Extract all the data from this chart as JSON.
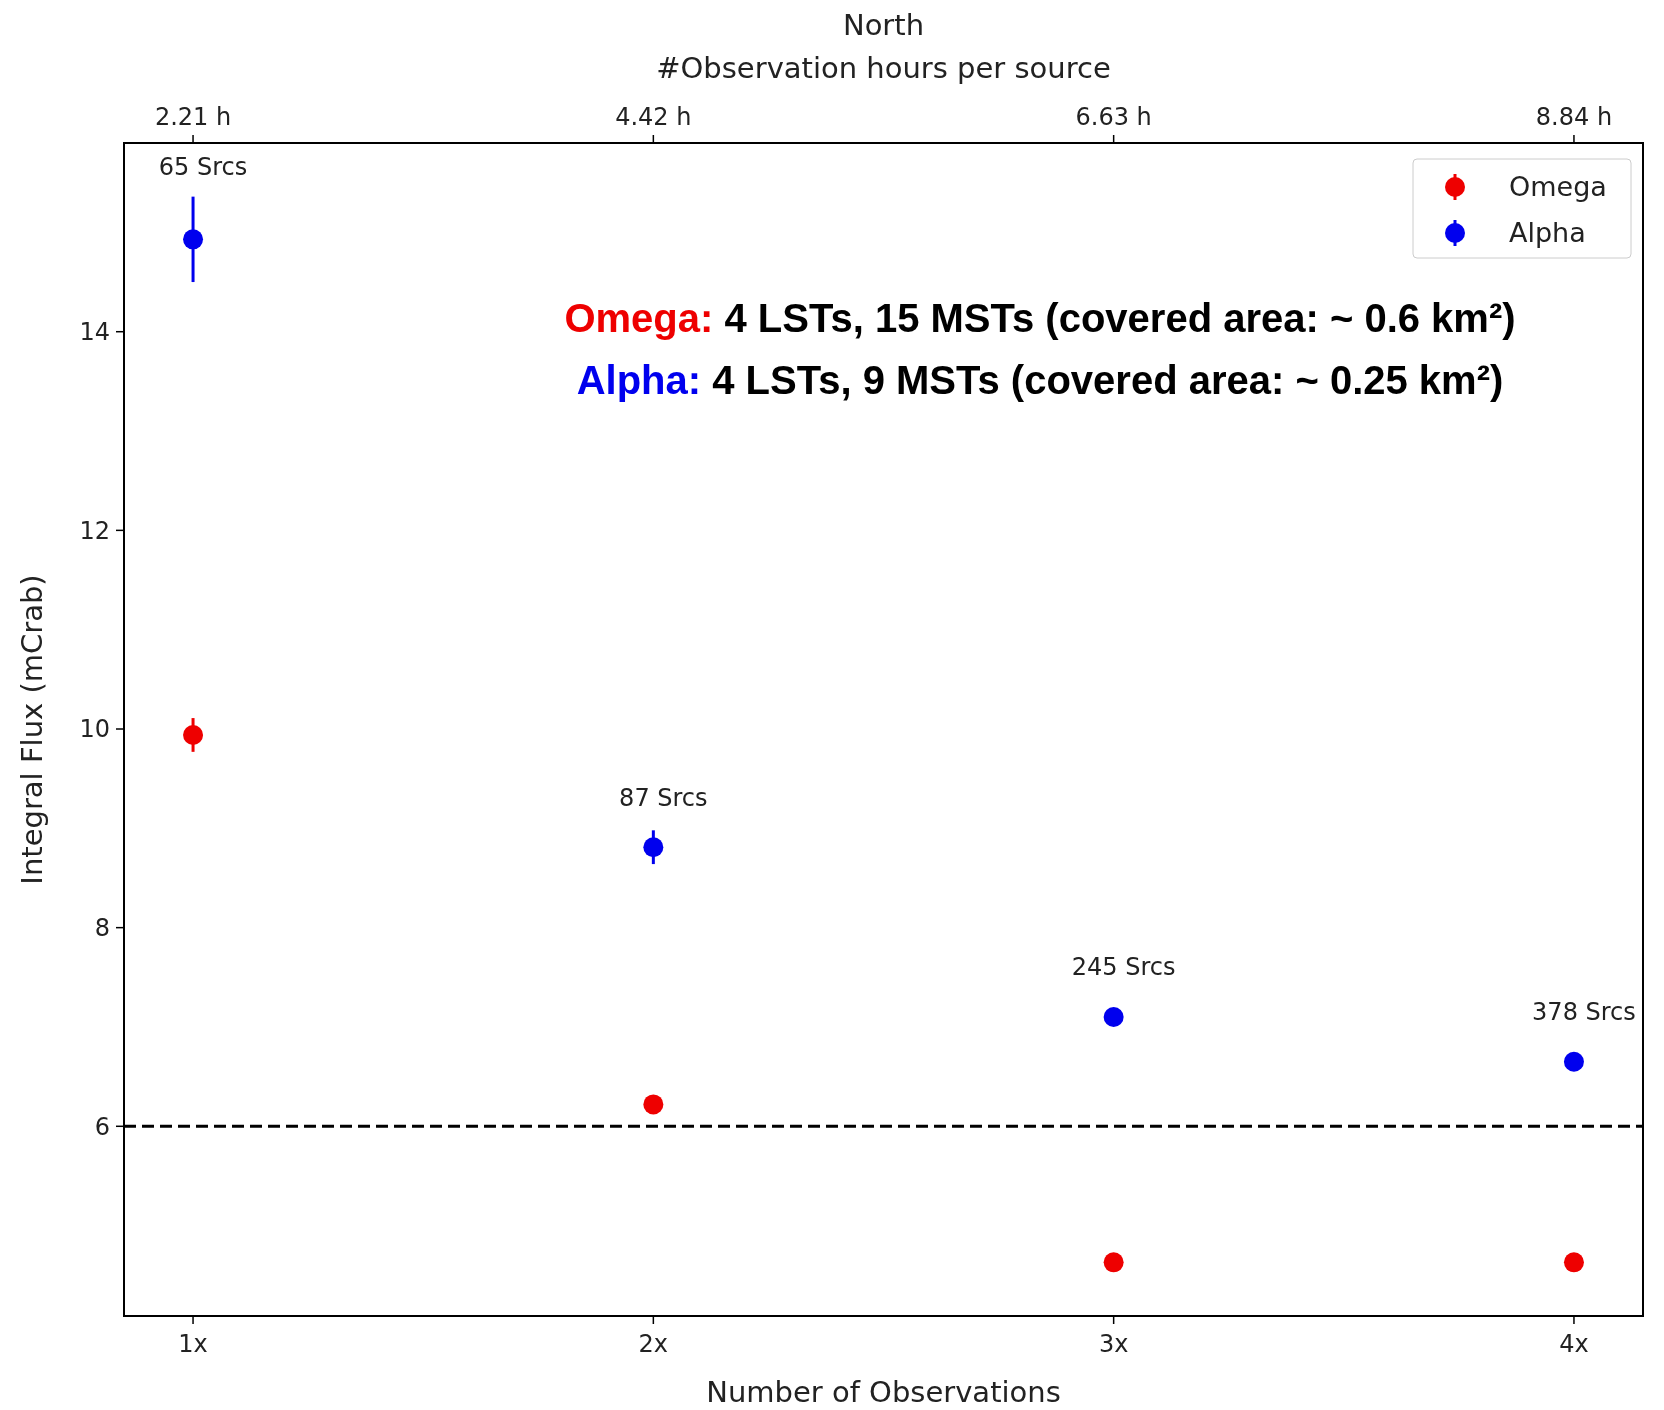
{
  "chart_data": {
    "type": "scatter",
    "title": "North",
    "xlabel": "Number of Observations",
    "ylabel": "Integral Flux (mCrab)",
    "x2label": "#Observation hours per source",
    "categories": [
      "1x",
      "2x",
      "3x",
      "4x"
    ],
    "x2lim": [
      1.8785,
      9.1715
    ],
    "x2ticks": [
      {
        "value": 2.21,
        "label": "2.21 h"
      },
      {
        "value": 4.42,
        "label": "4.42 h"
      },
      {
        "value": 6.63,
        "label": "6.63 h"
      },
      {
        "value": 8.84,
        "label": "8.84 h"
      }
    ],
    "ylim": [
      4.09,
      15.9
    ],
    "yticks": [
      6,
      8,
      10,
      12,
      14
    ],
    "series": [
      {
        "name": "Omega",
        "color": "#ee0000",
        "values": [
          9.94,
          6.22,
          4.63,
          4.63
        ],
        "errors": [
          0.17,
          null,
          null,
          null
        ]
      },
      {
        "name": "Alpha",
        "color": "#0000ee",
        "values": [
          14.93,
          8.81,
          7.1,
          6.65
        ],
        "errors": [
          0.43,
          0.17,
          null,
          null
        ]
      }
    ],
    "ref_lines": [
      {
        "axis": "y",
        "value": 6,
        "color": "#000000",
        "line_style": "dashed"
      }
    ],
    "annotations": [
      {
        "text": "65 Srcs",
        "x": "1x",
        "y": 14.93
      },
      {
        "text": "87 Srcs",
        "x": "2x",
        "y": 8.81
      },
      {
        "text": "245 Srcs",
        "x": "3x",
        "y": 7.1
      },
      {
        "text": "378 Srcs",
        "x": "4x",
        "y": 6.65
      },
      "Omega: 4 LSTs, 15 MSTs (covered area: ~ 0.6 km²)",
      "Alpha: 4 LSTs, 9 MSTs (covered area: ~ 0.25 km²)"
    ],
    "legend": "top right",
    "marker": "circle",
    "grid": false
  }
}
